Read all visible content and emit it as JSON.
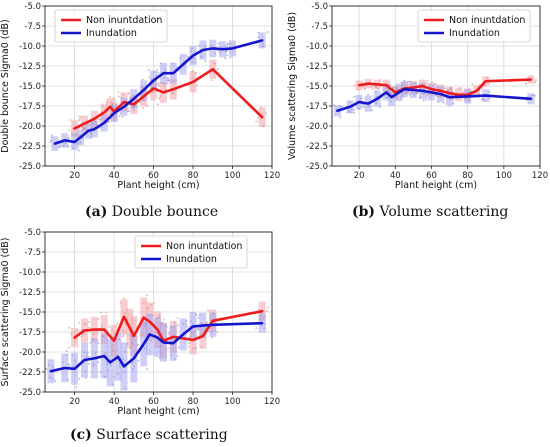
{
  "legend": {
    "non": "Non inuntdation",
    "inu": "Inundation"
  },
  "colors": {
    "non": "#ee1c1c",
    "inu": "#1515cf",
    "nonBand": "#f4a3a8",
    "inuBand": "#a6a6ee",
    "grid": "#d7d7d7"
  },
  "captions": [
    {
      "letter": "(a)",
      "text": " Double bounce"
    },
    {
      "letter": "(b)",
      "text": " Volume scattering"
    },
    {
      "letter": "(c)",
      "text": " Surface scattering"
    }
  ],
  "chart_data": [
    {
      "type": "line",
      "xlabel": "Plant height (cm)",
      "ylabel": "Double bounce Sigma0 (dB)",
      "xlim": [
        5,
        120
      ],
      "ylim": [
        -25,
        -5
      ],
      "xticks": [
        "20",
        "40",
        "60",
        "80",
        "100",
        "120"
      ],
      "yticks": [
        "-25.0",
        "-22.5",
        "-20.0",
        "-17.5",
        "-15.0",
        "-12.5",
        "-10.0",
        "-7.5",
        "-5.0"
      ],
      "grid": true,
      "legend_position": "top-left",
      "series": [
        {
          "name": "Non inuntdation",
          "x": [
            20,
            25,
            30,
            35,
            38,
            40,
            45,
            50,
            55,
            60,
            65,
            70,
            80,
            90,
            115
          ],
          "y": [
            -20.3,
            -19.7,
            -19.1,
            -18.3,
            -17.6,
            -18.2,
            -17.0,
            -17.3,
            -16.3,
            -15.3,
            -15.8,
            -15.4,
            -14.5,
            -12.9,
            -18.9
          ],
          "band": [
            1.0,
            1.0,
            1.0,
            1.1,
            1.1,
            1.2,
            1.2,
            1.2,
            1.2,
            1.3,
            1.3,
            1.3,
            1.3,
            1.2,
            1.2
          ]
        },
        {
          "name": "Inundation",
          "x": [
            10,
            15,
            20,
            23,
            27,
            30,
            35,
            40,
            45,
            50,
            55,
            60,
            65,
            70,
            75,
            80,
            85,
            90,
            95,
            100,
            115
          ],
          "y": [
            -22.2,
            -21.8,
            -22.0,
            -21.4,
            -20.6,
            -20.4,
            -19.6,
            -18.4,
            -17.6,
            -16.6,
            -15.5,
            -14.3,
            -13.4,
            -13.4,
            -12.3,
            -11.2,
            -10.5,
            -10.3,
            -10.4,
            -10.3,
            -9.3
          ],
          "band": [
            0.9,
            0.9,
            1.0,
            1.0,
            1.0,
            1.0,
            1.1,
            1.1,
            1.1,
            1.2,
            1.2,
            1.2,
            1.3,
            1.3,
            1.3,
            1.2,
            1.2,
            1.1,
            1.0,
            1.0,
            1.0
          ]
        }
      ]
    },
    {
      "type": "line",
      "xlabel": "Plant height (cm)",
      "ylabel": "Volume scattering Sigma0 (dB)",
      "xlim": [
        5,
        120
      ],
      "ylim": [
        -25,
        -5
      ],
      "xticks": [
        "20",
        "40",
        "60",
        "80",
        "100",
        "120"
      ],
      "yticks": [
        "-25.0",
        "-22.5",
        "-20.0",
        "-17.5",
        "-15.0",
        "-12.5",
        "-10.0",
        "-7.5",
        "-5.0"
      ],
      "grid": true,
      "legend_position": "top-right",
      "series": [
        {
          "name": "Non inuntdation",
          "x": [
            20,
            25,
            30,
            35,
            40,
            45,
            50,
            55,
            60,
            65,
            70,
            75,
            80,
            85,
            90,
            115
          ],
          "y": [
            -14.9,
            -14.7,
            -14.8,
            -14.9,
            -15.8,
            -15.3,
            -15.2,
            -15.0,
            -15.4,
            -15.6,
            -15.9,
            -16.1,
            -16.1,
            -15.6,
            -14.4,
            -14.2
          ],
          "band": [
            0.6,
            0.6,
            0.6,
            0.7,
            0.8,
            0.8,
            0.8,
            0.8,
            0.8,
            0.8,
            0.8,
            0.8,
            0.8,
            0.7,
            0.6,
            0.5
          ]
        },
        {
          "name": "Inundation",
          "x": [
            8,
            15,
            20,
            25,
            30,
            35,
            38,
            42,
            45,
            50,
            55,
            60,
            65,
            70,
            80,
            90,
            115
          ],
          "y": [
            -18.1,
            -17.6,
            -17.0,
            -17.2,
            -16.6,
            -15.8,
            -16.4,
            -15.8,
            -15.4,
            -15.5,
            -15.6,
            -15.8,
            -16.0,
            -16.4,
            -16.3,
            -16.2,
            -16.6
          ],
          "band": [
            0.7,
            0.8,
            0.9,
            1.0,
            1.0,
            1.0,
            1.1,
            1.1,
            1.0,
            1.0,
            1.0,
            1.0,
            1.0,
            1.0,
            0.9,
            0.8,
            0.7
          ]
        }
      ]
    },
    {
      "type": "line",
      "xlabel": "Plant height (cm)",
      "ylabel": "Surface scattering Sigma0 (dB)",
      "xlim": [
        5,
        120
      ],
      "ylim": [
        -25,
        -5
      ],
      "xticks": [
        "20",
        "40",
        "60",
        "80",
        "100",
        "120"
      ],
      "yticks": [
        "-25.0",
        "-22.5",
        "-20.0",
        "-17.5",
        "-15.0",
        "-12.5",
        "-10.0",
        "-7.5",
        "-5.0"
      ],
      "grid": true,
      "legend_position": "top-right",
      "series": [
        {
          "name": "Non inuntdation",
          "x": [
            20,
            25,
            30,
            35,
            40,
            45,
            48,
            50,
            55,
            58,
            62,
            65,
            70,
            80,
            85,
            90,
            115
          ],
          "y": [
            -18.2,
            -17.3,
            -17.2,
            -17.2,
            -18.6,
            -15.6,
            -17.0,
            -18.0,
            -15.7,
            -16.2,
            -17.2,
            -18.6,
            -18.1,
            -18.5,
            -18.0,
            -16.1,
            -14.9
          ],
          "band": [
            1.2,
            1.5,
            1.6,
            1.8,
            2.0,
            2.2,
            2.4,
            2.5,
            2.5,
            2.4,
            2.3,
            2.2,
            2.0,
            1.8,
            1.6,
            1.4,
            1.2
          ]
        },
        {
          "name": "Inundation",
          "x": [
            8,
            15,
            20,
            25,
            30,
            35,
            38,
            42,
            45,
            50,
            55,
            58,
            62,
            65,
            70,
            75,
            80,
            85,
            90,
            115
          ],
          "y": [
            -22.4,
            -22.0,
            -22.1,
            -21.0,
            -20.8,
            -20.5,
            -21.3,
            -20.6,
            -21.8,
            -20.8,
            -19.0,
            -17.8,
            -18.2,
            -18.8,
            -18.9,
            -17.8,
            -16.8,
            -16.7,
            -16.6,
            -16.4
          ],
          "band": [
            1.5,
            1.8,
            2.0,
            2.2,
            2.5,
            2.8,
            3.0,
            3.0,
            3.0,
            3.0,
            2.8,
            2.6,
            2.4,
            2.4,
            2.2,
            2.0,
            1.8,
            1.6,
            1.5,
            1.2
          ]
        }
      ]
    }
  ]
}
